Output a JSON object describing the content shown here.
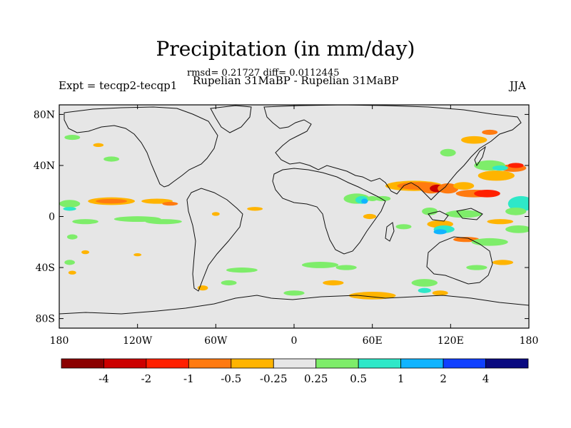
{
  "title": "Precipitation (in mm/day)",
  "stats_line": "rmsd= 0.21727 diff= 0.0112445",
  "experiment_label": "Expt = tecqp2-tecqp1",
  "comparison_label": "Rupelian  31MaBP - Rupelian  31MaBP",
  "season": "JJA",
  "lat_ticks": [
    "80N",
    "40N",
    "0",
    "40S",
    "80S"
  ],
  "lon_ticks": [
    "180",
    "120W",
    "60W",
    "0",
    "60E",
    "120E",
    "180"
  ],
  "colorbar": {
    "labels": [
      "-4",
      "-2",
      "-1",
      "-0.5",
      "-0.25",
      "0.25",
      "0.5",
      "1",
      "2",
      "4"
    ],
    "colors": [
      "#8b0000",
      "#cc0000",
      "#ff2000",
      "#ff7a10",
      "#ffb400",
      "#e6e6e6",
      "#7eed6a",
      "#2ee8c8",
      "#10b4ff",
      "#1040ff",
      "#0a0a80"
    ]
  },
  "colors": {
    "background": "#e6e6e6",
    "coast": "#111111"
  }
}
